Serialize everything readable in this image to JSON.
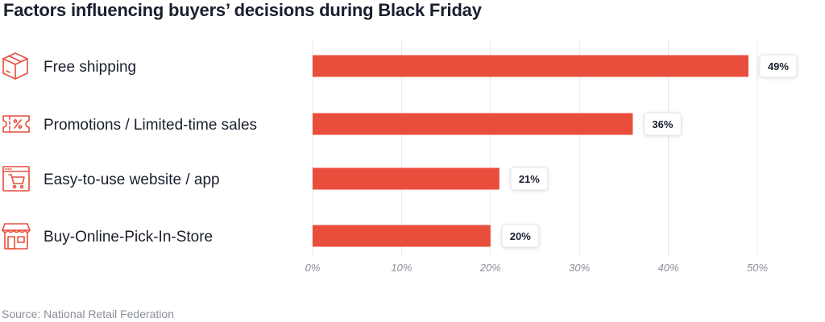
{
  "title": "Factors influencing buyers’ decisions during Black Friday",
  "source": "Source: National Retail Federation",
  "colors": {
    "bar": "#e94e3c",
    "icon": "#e94e3c",
    "grid": "#e6e7ea",
    "label_box_border": "#e3e5ea"
  },
  "chart_data": {
    "type": "bar",
    "orientation": "horizontal",
    "categories": [
      "Free shipping",
      "Promotions / Limited-time sales",
      "Easy-to-use website / app",
      "Buy-Online-Pick-In-Store"
    ],
    "icons": [
      "box-icon",
      "ticket-icon",
      "cart-window-icon",
      "store-icon"
    ],
    "values": [
      49,
      36,
      21,
      20
    ],
    "value_labels": [
      "49%",
      "36%",
      "21%",
      "20%"
    ],
    "xlim": [
      0,
      50
    ],
    "ticks": [
      0,
      10,
      20,
      30,
      40,
      50
    ],
    "tick_labels": [
      "0%",
      "10%",
      "20%",
      "30%",
      "40%",
      "50%"
    ],
    "grid": true,
    "legend": "none"
  }
}
